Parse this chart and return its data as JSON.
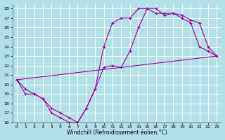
{
  "title": "",
  "xlabel": "Windchill (Refroidissement éolien,°C)",
  "ylabel": "",
  "xlim": [
    -0.5,
    23.5
  ],
  "ylim": [
    16,
    28.5
  ],
  "xticks": [
    0,
    1,
    2,
    3,
    4,
    5,
    6,
    7,
    8,
    9,
    10,
    11,
    12,
    13,
    14,
    15,
    16,
    17,
    18,
    19,
    20,
    21,
    22,
    23
  ],
  "yticks": [
    16,
    17,
    18,
    19,
    20,
    21,
    22,
    23,
    24,
    25,
    26,
    27,
    28
  ],
  "background_color": "#b2e0e8",
  "grid_color": "#ffffff",
  "line_color": "#990099",
  "line1_x": [
    0,
    1,
    2,
    3,
    4,
    5,
    6,
    7,
    8,
    9,
    10,
    11,
    12,
    13,
    14,
    15,
    16,
    17,
    18,
    19,
    20,
    21,
    22,
    23
  ],
  "line1_y": [
    20.5,
    19.0,
    19.0,
    18.5,
    17.0,
    16.5,
    16.0,
    16.0,
    17.5,
    19.5,
    24.0,
    26.5,
    27.0,
    27.0,
    28.0,
    28.0,
    27.5,
    27.5,
    27.5,
    27.0,
    26.5,
    24.0,
    23.5,
    23.0
  ],
  "line2_x": [
    0,
    1,
    2,
    3,
    4,
    5,
    6,
    7,
    8,
    9,
    10,
    11,
    12,
    13,
    14,
    15,
    16,
    17,
    18,
    19,
    20,
    21,
    22,
    23
  ],
  "line2_y": [
    20.5,
    19.5,
    19.0,
    18.5,
    17.5,
    17.0,
    16.5,
    16.0,
    17.5,
    19.5,
    21.8,
    22.0,
    21.8,
    23.5,
    26.0,
    28.0,
    28.0,
    27.3,
    27.5,
    27.3,
    26.8,
    26.5,
    24.0,
    23.0
  ],
  "line3_x": [
    0,
    23
  ],
  "line3_y": [
    20.5,
    23.0
  ],
  "marker": "+",
  "markersize": 3,
  "linewidth": 0.8
}
